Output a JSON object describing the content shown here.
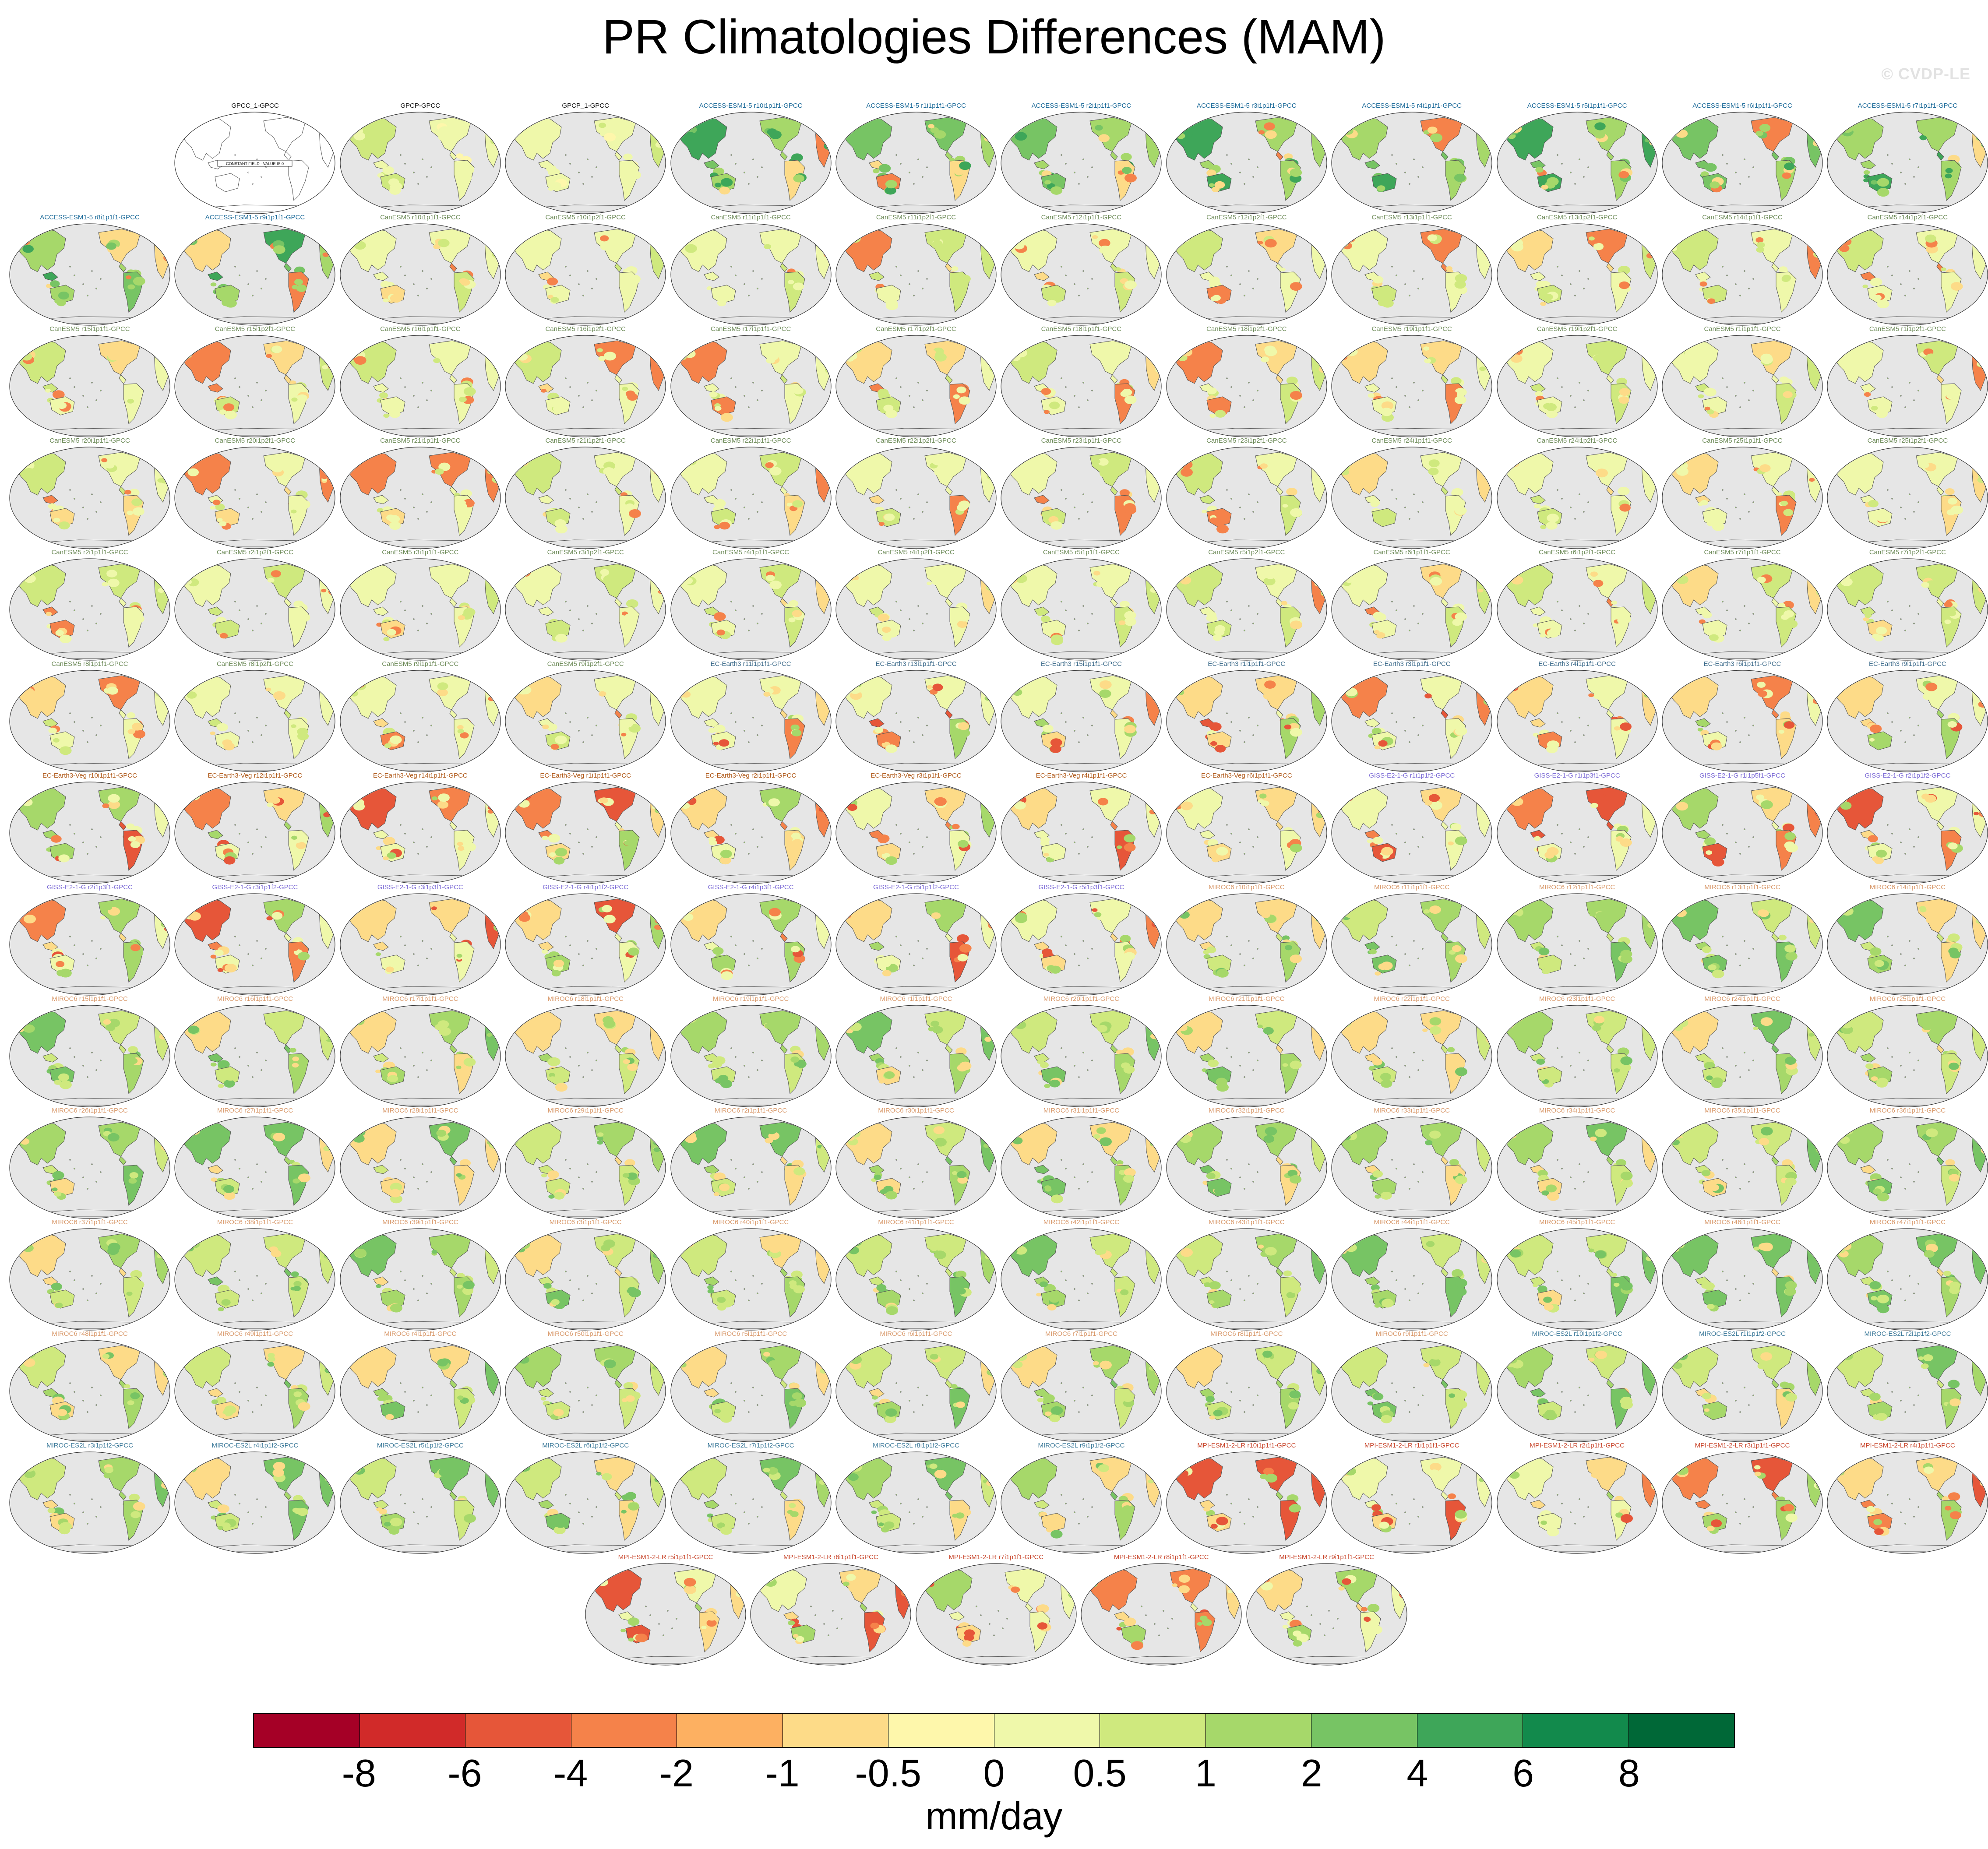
{
  "title": "PR Climatologies Differences (MAM)",
  "credit": "© CVDP-LE",
  "units": "mm/day",
  "colorbar": {
    "colors": [
      "#a50026",
      "#d12a29",
      "#e65639",
      "#f5824a",
      "#fdb061",
      "#fddb88",
      "#fef7ab",
      "#eff8aa",
      "#cfe97e",
      "#a6d86a",
      "#77c464",
      "#3ea659",
      "#128a4c",
      "#006837"
    ],
    "ticks": [
      "-8",
      "-6",
      "-4",
      "-2",
      "-1",
      "-0.5",
      "0",
      "0.5",
      "1",
      "2",
      "4",
      "6",
      "8"
    ]
  },
  "special_panel_text": "CONSTANT FIELD - VALUE IS 0",
  "map_style": {
    "ocean": "#e6e6e6",
    "coast": "#555555"
  },
  "colors": {
    "obs": "#111111",
    "ACCESS-ESM1-5": "#1b6a99",
    "CanESM5": "#6c8a57",
    "EC-Earth3": "#3b6a8a",
    "EC-Earth3-Veg": "#b05a1a",
    "GISS-E2-1-G": "#7c6bd6",
    "MIROC6": "#d99a6c",
    "MIROC-ES2L": "#3c7a9a",
    "MPI-ESM1-2-LR": "#c8452b"
  },
  "panels": [
    {
      "label": "GPCC_1-GPCC",
      "model": "obs",
      "kind": "empty"
    },
    {
      "label": "GPCP-GPCC",
      "model": "obs",
      "kind": "obs"
    },
    {
      "label": "GPCP_1-GPCC",
      "model": "obs",
      "kind": "obs"
    },
    {
      "label": "ACCESS-ESM1-5 r10i1p1f1-GPCC",
      "model": "ACCESS-ESM1-5",
      "kind": "wet"
    },
    {
      "label": "ACCESS-ESM1-5 r1i1p1f1-GPCC",
      "model": "ACCESS-ESM1-5",
      "kind": "wet"
    },
    {
      "label": "ACCESS-ESM1-5 r2i1p1f1-GPCC",
      "model": "ACCESS-ESM1-5",
      "kind": "wet"
    },
    {
      "label": "ACCESS-ESM1-5 r3i1p1f1-GPCC",
      "model": "ACCESS-ESM1-5",
      "kind": "wet"
    },
    {
      "label": "ACCESS-ESM1-5 r4i1p1f1-GPCC",
      "model": "ACCESS-ESM1-5",
      "kind": "wet"
    },
    {
      "label": "ACCESS-ESM1-5 r5i1p1f1-GPCC",
      "model": "ACCESS-ESM1-5",
      "kind": "wet"
    },
    {
      "label": "ACCESS-ESM1-5 r6i1p1f1-GPCC",
      "model": "ACCESS-ESM1-5",
      "kind": "wet"
    },
    {
      "label": "ACCESS-ESM1-5 r7i1p1f1-GPCC",
      "model": "ACCESS-ESM1-5",
      "kind": "wet"
    },
    {
      "label": "ACCESS-ESM1-5 r8i1p1f1-GPCC",
      "model": "ACCESS-ESM1-5",
      "kind": "wet"
    },
    {
      "label": "ACCESS-ESM1-5 r9i1p1f1-GPCC",
      "model": "ACCESS-ESM1-5",
      "kind": "wet"
    },
    {
      "label": "CanESM5 r10i1p1f1-GPCC",
      "model": "CanESM5",
      "kind": "can"
    },
    {
      "label": "CanESM5 r10i1p2f1-GPCC",
      "model": "CanESM5",
      "kind": "can"
    },
    {
      "label": "CanESM5 r11i1p1f1-GPCC",
      "model": "CanESM5",
      "kind": "can"
    },
    {
      "label": "CanESM5 r11i1p2f1-GPCC",
      "model": "CanESM5",
      "kind": "can"
    },
    {
      "label": "CanESM5 r12i1p1f1-GPCC",
      "model": "CanESM5",
      "kind": "can"
    },
    {
      "label": "CanESM5 r12i1p2f1-GPCC",
      "model": "CanESM5",
      "kind": "can"
    },
    {
      "label": "CanESM5 r13i1p1f1-GPCC",
      "model": "CanESM5",
      "kind": "can"
    },
    {
      "label": "CanESM5 r13i1p2f1-GPCC",
      "model": "CanESM5",
      "kind": "can"
    },
    {
      "label": "CanESM5 r14i1p1f1-GPCC",
      "model": "CanESM5",
      "kind": "can"
    },
    {
      "label": "CanESM5 r14i1p2f1-GPCC",
      "model": "CanESM5",
      "kind": "can"
    },
    {
      "label": "CanESM5 r15i1p1f1-GPCC",
      "model": "CanESM5",
      "kind": "can"
    },
    {
      "label": "CanESM5 r15i1p2f1-GPCC",
      "model": "CanESM5",
      "kind": "can"
    },
    {
      "label": "CanESM5 r16i1p1f1-GPCC",
      "model": "CanESM5",
      "kind": "can"
    },
    {
      "label": "CanESM5 r16i1p2f1-GPCC",
      "model": "CanESM5",
      "kind": "can"
    },
    {
      "label": "CanESM5 r17i1p1f1-GPCC",
      "model": "CanESM5",
      "kind": "can"
    },
    {
      "label": "CanESM5 r17i1p2f1-GPCC",
      "model": "CanESM5",
      "kind": "can"
    },
    {
      "label": "CanESM5 r18i1p1f1-GPCC",
      "model": "CanESM5",
      "kind": "can"
    },
    {
      "label": "CanESM5 r18i1p2f1-GPCC",
      "model": "CanESM5",
      "kind": "can"
    },
    {
      "label": "CanESM5 r19i1p1f1-GPCC",
      "model": "CanESM5",
      "kind": "can"
    },
    {
      "label": "CanESM5 r19i1p2f1-GPCC",
      "model": "CanESM5",
      "kind": "can"
    },
    {
      "label": "CanESM5 r1i1p1f1-GPCC",
      "model": "CanESM5",
      "kind": "can"
    },
    {
      "label": "CanESM5 r1i1p2f1-GPCC",
      "model": "CanESM5",
      "kind": "can"
    },
    {
      "label": "CanESM5 r20i1p1f1-GPCC",
      "model": "CanESM5",
      "kind": "can"
    },
    {
      "label": "CanESM5 r20i1p2f1-GPCC",
      "model": "CanESM5",
      "kind": "can"
    },
    {
      "label": "CanESM5 r21i1p1f1-GPCC",
      "model": "CanESM5",
      "kind": "can"
    },
    {
      "label": "CanESM5 r21i1p2f1-GPCC",
      "model": "CanESM5",
      "kind": "can"
    },
    {
      "label": "CanESM5 r22i1p1f1-GPCC",
      "model": "CanESM5",
      "kind": "can"
    },
    {
      "label": "CanESM5 r22i1p2f1-GPCC",
      "model": "CanESM5",
      "kind": "can"
    },
    {
      "label": "CanESM5 r23i1p1f1-GPCC",
      "model": "CanESM5",
      "kind": "can"
    },
    {
      "label": "CanESM5 r23i1p2f1-GPCC",
      "model": "CanESM5",
      "kind": "can"
    },
    {
      "label": "CanESM5 r24i1p1f1-GPCC",
      "model": "CanESM5",
      "kind": "can"
    },
    {
      "label": "CanESM5 r24i1p2f1-GPCC",
      "model": "CanESM5",
      "kind": "can"
    },
    {
      "label": "CanESM5 r25i1p1f1-GPCC",
      "model": "CanESM5",
      "kind": "can"
    },
    {
      "label": "CanESM5 r25i1p2f1-GPCC",
      "model": "CanESM5",
      "kind": "can"
    },
    {
      "label": "CanESM5 r2i1p1f1-GPCC",
      "model": "CanESM5",
      "kind": "can"
    },
    {
      "label": "CanESM5 r2i1p2f1-GPCC",
      "model": "CanESM5",
      "kind": "can"
    },
    {
      "label": "CanESM5 r3i1p1f1-GPCC",
      "model": "CanESM5",
      "kind": "can"
    },
    {
      "label": "CanESM5 r3i1p2f1-GPCC",
      "model": "CanESM5",
      "kind": "can"
    },
    {
      "label": "CanESM5 r4i1p1f1-GPCC",
      "model": "CanESM5",
      "kind": "can"
    },
    {
      "label": "CanESM5 r4i1p2f1-GPCC",
      "model": "CanESM5",
      "kind": "can"
    },
    {
      "label": "CanESM5 r5i1p1f1-GPCC",
      "model": "CanESM5",
      "kind": "can"
    },
    {
      "label": "CanESM5 r5i1p2f1-GPCC",
      "model": "CanESM5",
      "kind": "can"
    },
    {
      "label": "CanESM5 r6i1p1f1-GPCC",
      "model": "CanESM5",
      "kind": "can"
    },
    {
      "label": "CanESM5 r6i1p2f1-GPCC",
      "model": "CanESM5",
      "kind": "can"
    },
    {
      "label": "CanESM5 r7i1p1f1-GPCC",
      "model": "CanESM5",
      "kind": "can"
    },
    {
      "label": "CanESM5 r7i1p2f1-GPCC",
      "model": "CanESM5",
      "kind": "can"
    },
    {
      "label": "CanESM5 r8i1p1f1-GPCC",
      "model": "CanESM5",
      "kind": "can"
    },
    {
      "label": "CanESM5 r8i1p2f1-GPCC",
      "model": "CanESM5",
      "kind": "can"
    },
    {
      "label": "CanESM5 r9i1p1f1-GPCC",
      "model": "CanESM5",
      "kind": "can"
    },
    {
      "label": "CanESM5 r9i1p2f1-GPCC",
      "model": "CanESM5",
      "kind": "can"
    },
    {
      "label": "EC-Earth3 r11i1p1f1-GPCC",
      "model": "EC-Earth3",
      "kind": "dry"
    },
    {
      "label": "EC-Earth3 r13i1p1f1-GPCC",
      "model": "EC-Earth3",
      "kind": "dry"
    },
    {
      "label": "EC-Earth3 r15i1p1f1-GPCC",
      "model": "EC-Earth3",
      "kind": "dry"
    },
    {
      "label": "EC-Earth3 r1i1p1f1-GPCC",
      "model": "EC-Earth3",
      "kind": "dry"
    },
    {
      "label": "EC-Earth3 r3i1p1f1-GPCC",
      "model": "EC-Earth3",
      "kind": "dry"
    },
    {
      "label": "EC-Earth3 r4i1p1f1-GPCC",
      "model": "EC-Earth3",
      "kind": "dry"
    },
    {
      "label": "EC-Earth3 r6i1p1f1-GPCC",
      "model": "EC-Earth3",
      "kind": "dry"
    },
    {
      "label": "EC-Earth3 r9i1p1f1-GPCC",
      "model": "EC-Earth3",
      "kind": "dry"
    },
    {
      "label": "EC-Earth3-Veg r10i1p1f1-GPCC",
      "model": "EC-Earth3-Veg",
      "kind": "dry"
    },
    {
      "label": "EC-Earth3-Veg r12i1p1f1-GPCC",
      "model": "EC-Earth3-Veg",
      "kind": "dry"
    },
    {
      "label": "EC-Earth3-Veg r14i1p1f1-GPCC",
      "model": "EC-Earth3-Veg",
      "kind": "dry"
    },
    {
      "label": "EC-Earth3-Veg r1i1p1f1-GPCC",
      "model": "EC-Earth3-Veg",
      "kind": "dry"
    },
    {
      "label": "EC-Earth3-Veg r2i1p1f1-GPCC",
      "model": "EC-Earth3-Veg",
      "kind": "dry"
    },
    {
      "label": "EC-Earth3-Veg r3i1p1f1-GPCC",
      "model": "EC-Earth3-Veg",
      "kind": "dry"
    },
    {
      "label": "EC-Earth3-Veg r4i1p1f1-GPCC",
      "model": "EC-Earth3-Veg",
      "kind": "dry"
    },
    {
      "label": "EC-Earth3-Veg r6i1p1f1-GPCC",
      "model": "EC-Earth3-Veg",
      "kind": "dry"
    },
    {
      "label": "GISS-E2-1-G r1i1p1f2-GPCC",
      "model": "GISS-E2-1-G",
      "kind": "dry"
    },
    {
      "label": "GISS-E2-1-G r1i1p3f1-GPCC",
      "model": "GISS-E2-1-G",
      "kind": "dry"
    },
    {
      "label": "GISS-E2-1-G r1i1p5f1-GPCC",
      "model": "GISS-E2-1-G",
      "kind": "dry"
    },
    {
      "label": "GISS-E2-1-G r2i1p1f2-GPCC",
      "model": "GISS-E2-1-G",
      "kind": "dry"
    },
    {
      "label": "GISS-E2-1-G r2i1p3f1-GPCC",
      "model": "GISS-E2-1-G",
      "kind": "dry"
    },
    {
      "label": "GISS-E2-1-G r3i1p1f2-GPCC",
      "model": "GISS-E2-1-G",
      "kind": "dry"
    },
    {
      "label": "GISS-E2-1-G r3i1p3f1-GPCC",
      "model": "GISS-E2-1-G",
      "kind": "dry"
    },
    {
      "label": "GISS-E2-1-G r4i1p1f2-GPCC",
      "model": "GISS-E2-1-G",
      "kind": "dry"
    },
    {
      "label": "GISS-E2-1-G r4i1p3f1-GPCC",
      "model": "GISS-E2-1-G",
      "kind": "dry"
    },
    {
      "label": "GISS-E2-1-G r5i1p1f2-GPCC",
      "model": "GISS-E2-1-G",
      "kind": "dry"
    },
    {
      "label": "GISS-E2-1-G r5i1p3f1-GPCC",
      "model": "GISS-E2-1-G",
      "kind": "dry"
    },
    {
      "label": "MIROC6 r10i1p1f1-GPCC",
      "model": "MIROC6",
      "kind": "miroc"
    },
    {
      "label": "MIROC6 r11i1p1f1-GPCC",
      "model": "MIROC6",
      "kind": "miroc"
    },
    {
      "label": "MIROC6 r12i1p1f1-GPCC",
      "model": "MIROC6",
      "kind": "miroc"
    },
    {
      "label": "MIROC6 r13i1p1f1-GPCC",
      "model": "MIROC6",
      "kind": "miroc"
    },
    {
      "label": "MIROC6 r14i1p1f1-GPCC",
      "model": "MIROC6",
      "kind": "miroc"
    },
    {
      "label": "MIROC6 r15i1p1f1-GPCC",
      "model": "MIROC6",
      "kind": "miroc"
    },
    {
      "label": "MIROC6 r16i1p1f1-GPCC",
      "model": "MIROC6",
      "kind": "miroc"
    },
    {
      "label": "MIROC6 r17i1p1f1-GPCC",
      "model": "MIROC6",
      "kind": "miroc"
    },
    {
      "label": "MIROC6 r18i1p1f1-GPCC",
      "model": "MIROC6",
      "kind": "miroc"
    },
    {
      "label": "MIROC6 r19i1p1f1-GPCC",
      "model": "MIROC6",
      "kind": "miroc"
    },
    {
      "label": "MIROC6 r1i1p1f1-GPCC",
      "model": "MIROC6",
      "kind": "miroc"
    },
    {
      "label": "MIROC6 r20i1p1f1-GPCC",
      "model": "MIROC6",
      "kind": "miroc"
    },
    {
      "label": "MIROC6 r21i1p1f1-GPCC",
      "model": "MIROC6",
      "kind": "miroc"
    },
    {
      "label": "MIROC6 r22i1p1f1-GPCC",
      "model": "MIROC6",
      "kind": "miroc"
    },
    {
      "label": "MIROC6 r23i1p1f1-GPCC",
      "model": "MIROC6",
      "kind": "miroc"
    },
    {
      "label": "MIROC6 r24i1p1f1-GPCC",
      "model": "MIROC6",
      "kind": "miroc"
    },
    {
      "label": "MIROC6 r25i1p1f1-GPCC",
      "model": "MIROC6",
      "kind": "miroc"
    },
    {
      "label": "MIROC6 r26i1p1f1-GPCC",
      "model": "MIROC6",
      "kind": "miroc"
    },
    {
      "label": "MIROC6 r27i1p1f1-GPCC",
      "model": "MIROC6",
      "kind": "miroc"
    },
    {
      "label": "MIROC6 r28i1p1f1-GPCC",
      "model": "MIROC6",
      "kind": "miroc"
    },
    {
      "label": "MIROC6 r29i1p1f1-GPCC",
      "model": "MIROC6",
      "kind": "miroc"
    },
    {
      "label": "MIROC6 r2i1p1f1-GPCC",
      "model": "MIROC6",
      "kind": "miroc"
    },
    {
      "label": "MIROC6 r30i1p1f1-GPCC",
      "model": "MIROC6",
      "kind": "miroc"
    },
    {
      "label": "MIROC6 r31i1p1f1-GPCC",
      "model": "MIROC6",
      "kind": "miroc"
    },
    {
      "label": "MIROC6 r32i1p1f1-GPCC",
      "model": "MIROC6",
      "kind": "miroc"
    },
    {
      "label": "MIROC6 r33i1p1f1-GPCC",
      "model": "MIROC6",
      "kind": "miroc"
    },
    {
      "label": "MIROC6 r34i1p1f1-GPCC",
      "model": "MIROC6",
      "kind": "miroc"
    },
    {
      "label": "MIROC6 r35i1p1f1-GPCC",
      "model": "MIROC6",
      "kind": "miroc"
    },
    {
      "label": "MIROC6 r36i1p1f1-GPCC",
      "model": "MIROC6",
      "kind": "miroc"
    },
    {
      "label": "MIROC6 r37i1p1f1-GPCC",
      "model": "MIROC6",
      "kind": "miroc"
    },
    {
      "label": "MIROC6 r38i1p1f1-GPCC",
      "model": "MIROC6",
      "kind": "miroc"
    },
    {
      "label": "MIROC6 r39i1p1f1-GPCC",
      "model": "MIROC6",
      "kind": "miroc"
    },
    {
      "label": "MIROC6 r3i1p1f1-GPCC",
      "model": "MIROC6",
      "kind": "miroc"
    },
    {
      "label": "MIROC6 r40i1p1f1-GPCC",
      "model": "MIROC6",
      "kind": "miroc"
    },
    {
      "label": "MIROC6 r41i1p1f1-GPCC",
      "model": "MIROC6",
      "kind": "miroc"
    },
    {
      "label": "MIROC6 r42i1p1f1-GPCC",
      "model": "MIROC6",
      "kind": "miroc"
    },
    {
      "label": "MIROC6 r43i1p1f1-GPCC",
      "model": "MIROC6",
      "kind": "miroc"
    },
    {
      "label": "MIROC6 r44i1p1f1-GPCC",
      "model": "MIROC6",
      "kind": "miroc"
    },
    {
      "label": "MIROC6 r45i1p1f1-GPCC",
      "model": "MIROC6",
      "kind": "miroc"
    },
    {
      "label": "MIROC6 r46i1p1f1-GPCC",
      "model": "MIROC6",
      "kind": "miroc"
    },
    {
      "label": "MIROC6 r47i1p1f1-GPCC",
      "model": "MIROC6",
      "kind": "miroc"
    },
    {
      "label": "MIROC6 r48i1p1f1-GPCC",
      "model": "MIROC6",
      "kind": "miroc"
    },
    {
      "label": "MIROC6 r49i1p1f1-GPCC",
      "model": "MIROC6",
      "kind": "miroc"
    },
    {
      "label": "MIROC6 r4i1p1f1-GPCC",
      "model": "MIROC6",
      "kind": "miroc"
    },
    {
      "label": "MIROC6 r50i1p1f1-GPCC",
      "model": "MIROC6",
      "kind": "miroc"
    },
    {
      "label": "MIROC6 r5i1p1f1-GPCC",
      "model": "MIROC6",
      "kind": "miroc"
    },
    {
      "label": "MIROC6 r6i1p1f1-GPCC",
      "model": "MIROC6",
      "kind": "miroc"
    },
    {
      "label": "MIROC6 r7i1p1f1-GPCC",
      "model": "MIROC6",
      "kind": "miroc"
    },
    {
      "label": "MIROC6 r8i1p1f1-GPCC",
      "model": "MIROC6",
      "kind": "miroc"
    },
    {
      "label": "MIROC6 r9i1p1f1-GPCC",
      "model": "MIROC6",
      "kind": "miroc"
    },
    {
      "label": "MIROC-ES2L r10i1p1f2-GPCC",
      "model": "MIROC-ES2L",
      "kind": "miroc"
    },
    {
      "label": "MIROC-ES2L r1i1p1f2-GPCC",
      "model": "MIROC-ES2L",
      "kind": "miroc"
    },
    {
      "label": "MIROC-ES2L r2i1p1f2-GPCC",
      "model": "MIROC-ES2L",
      "kind": "miroc"
    },
    {
      "label": "MIROC-ES2L r3i1p1f2-GPCC",
      "model": "MIROC-ES2L",
      "kind": "miroc"
    },
    {
      "label": "MIROC-ES2L r4i1p1f2-GPCC",
      "model": "MIROC-ES2L",
      "kind": "miroc"
    },
    {
      "label": "MIROC-ES2L r5i1p1f2-GPCC",
      "model": "MIROC-ES2L",
      "kind": "miroc"
    },
    {
      "label": "MIROC-ES2L r6i1p1f2-GPCC",
      "model": "MIROC-ES2L",
      "kind": "miroc"
    },
    {
      "label": "MIROC-ES2L r7i1p1f2-GPCC",
      "model": "MIROC-ES2L",
      "kind": "miroc"
    },
    {
      "label": "MIROC-ES2L r8i1p1f2-GPCC",
      "model": "MIROC-ES2L",
      "kind": "miroc"
    },
    {
      "label": "MIROC-ES2L r9i1p1f2-GPCC",
      "model": "MIROC-ES2L",
      "kind": "miroc"
    },
    {
      "label": "MPI-ESM1-2-LR r10i1p1f1-GPCC",
      "model": "MPI-ESM1-2-LR",
      "kind": "dry"
    },
    {
      "label": "MPI-ESM1-2-LR r1i1p1f1-GPCC",
      "model": "MPI-ESM1-2-LR",
      "kind": "dry"
    },
    {
      "label": "MPI-ESM1-2-LR r2i1p1f1-GPCC",
      "model": "MPI-ESM1-2-LR",
      "kind": "dry"
    },
    {
      "label": "MPI-ESM1-2-LR r3i1p1f1-GPCC",
      "model": "MPI-ESM1-2-LR",
      "kind": "dry"
    },
    {
      "label": "MPI-ESM1-2-LR r4i1p1f1-GPCC",
      "model": "MPI-ESM1-2-LR",
      "kind": "dry"
    },
    {
      "label": "MPI-ESM1-2-LR r5i1p1f1-GPCC",
      "model": "MPI-ESM1-2-LR",
      "kind": "dry"
    },
    {
      "label": "MPI-ESM1-2-LR r6i1p1f1-GPCC",
      "model": "MPI-ESM1-2-LR",
      "kind": "dry"
    },
    {
      "label": "MPI-ESM1-2-LR r7i1p1f1-GPCC",
      "model": "MPI-ESM1-2-LR",
      "kind": "dry"
    },
    {
      "label": "MPI-ESM1-2-LR r8i1p1f1-GPCC",
      "model": "MPI-ESM1-2-LR",
      "kind": "dry"
    },
    {
      "label": "MPI-ESM1-2-LR r9i1p1f1-GPCC",
      "model": "MPI-ESM1-2-LR",
      "kind": "dry"
    }
  ]
}
